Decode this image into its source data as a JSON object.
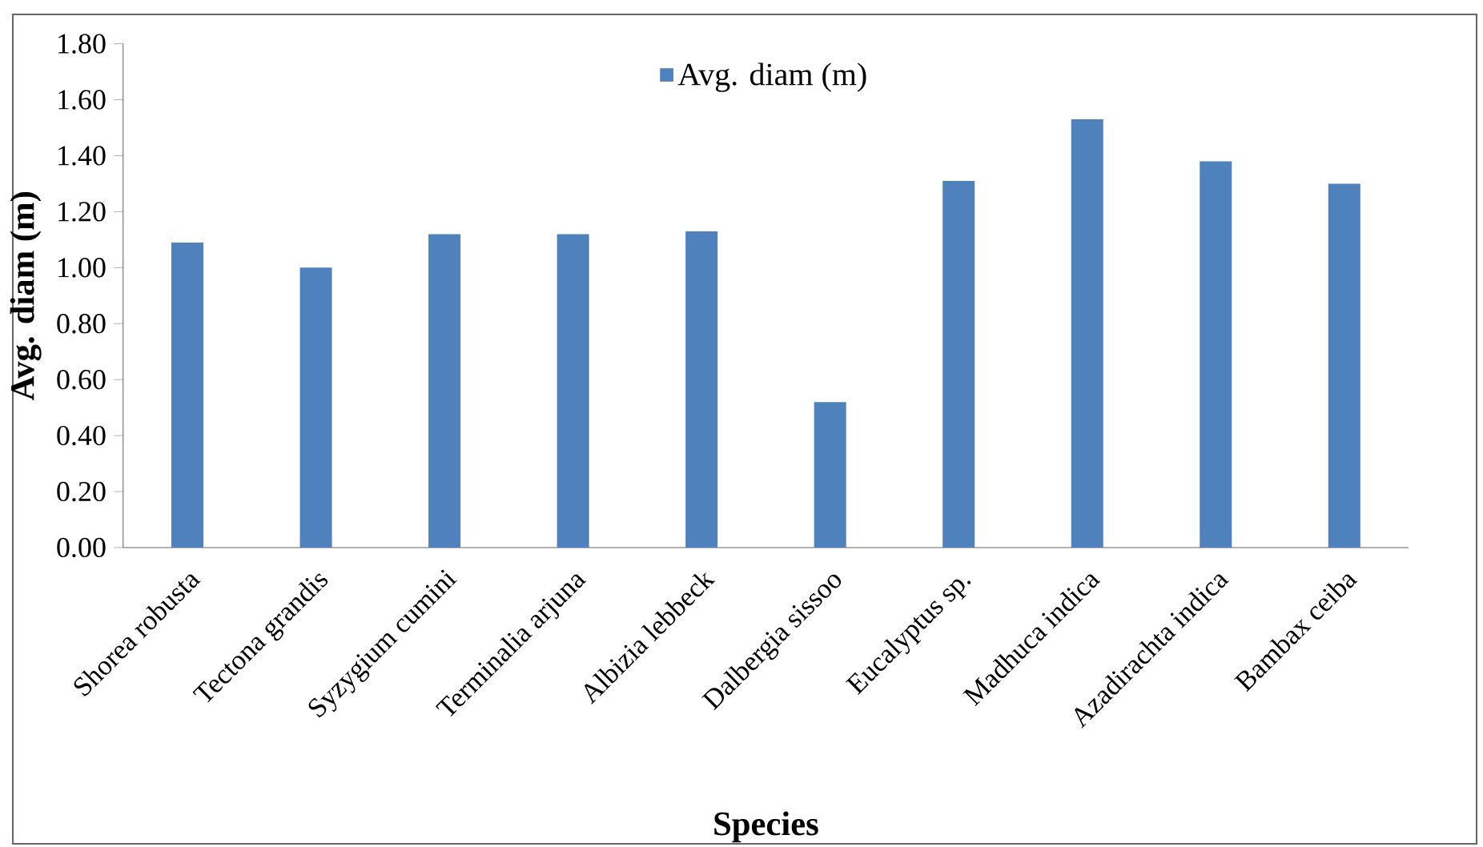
{
  "chart_data": {
    "type": "bar",
    "xlabel": "Species",
    "ylabel": "Avg. diam (m)",
    "categories": [
      "Shorea robusta",
      "Tectona grandis",
      "Syzygium cumini",
      "Terminalia arjuna",
      "Albizia lebbeck",
      "Dalbergia sissoo",
      "Eucalyptus sp.",
      "Madhuca indica",
      "Azadirachta indica",
      "Bambax ceiba"
    ],
    "series": [
      {
        "name": "Avg. diam (m)",
        "color": "#4f81bd",
        "values": [
          1.09,
          1.0,
          1.12,
          1.12,
          1.13,
          0.52,
          1.31,
          1.53,
          1.38,
          1.3
        ]
      }
    ],
    "ylim": [
      0,
      1.8
    ],
    "yticks": [
      {
        "value": 0,
        "label": "0.00"
      },
      {
        "value": 0.2,
        "label": "0.20"
      },
      {
        "value": 0.4,
        "label": "0.40"
      },
      {
        "value": 0.6,
        "label": "0.60"
      },
      {
        "value": 0.8,
        "label": "0.80"
      },
      {
        "value": 1.0,
        "label": "1.00"
      },
      {
        "value": 1.2,
        "label": "1.20"
      },
      {
        "value": 1.4,
        "label": "1.40"
      },
      {
        "value": 1.6,
        "label": "1.60"
      },
      {
        "value": 1.8,
        "label": "1.80"
      }
    ],
    "legend": "top",
    "grid": false
  }
}
